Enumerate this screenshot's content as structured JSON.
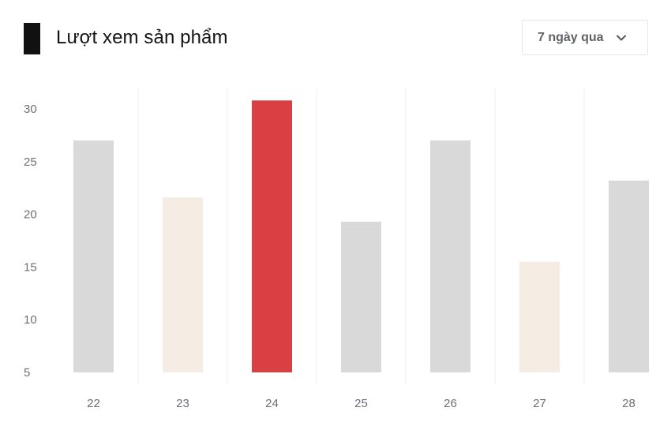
{
  "header": {
    "title": "Lượt xem sản phẩm",
    "range_select": {
      "value": "7 ngày qua",
      "icon": "chevron-down-icon"
    }
  },
  "colors": {
    "accent": "#111111",
    "highlight": "#d94043",
    "neutral": "#d9d9d9",
    "light": "#f5ede4"
  },
  "chart_data": {
    "type": "bar",
    "categories": [
      "22",
      "23",
      "24",
      "25",
      "26",
      "27",
      "28"
    ],
    "values": [
      27,
      21.6,
      30.8,
      19.3,
      27,
      15.5,
      23.2
    ],
    "bar_styles": [
      "neutral",
      "light",
      "highlight",
      "neutral",
      "neutral",
      "light",
      "neutral"
    ],
    "ylim": [
      5,
      30
    ],
    "yticks": [
      5,
      10,
      15,
      20,
      25,
      30
    ],
    "grid": "vertical separators",
    "title": "",
    "xlabel": "",
    "ylabel": ""
  }
}
